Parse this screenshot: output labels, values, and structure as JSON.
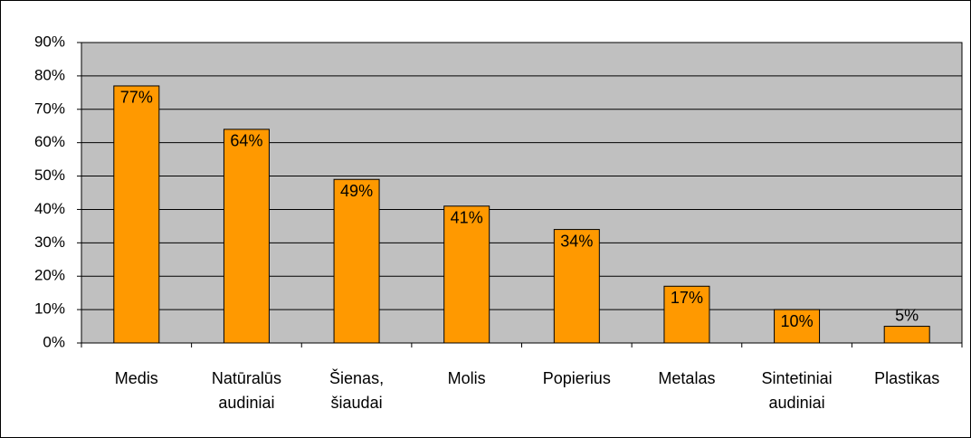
{
  "chart_data": {
    "type": "bar",
    "categories": [
      "Medis",
      "Natūralūs audiniai",
      "Šienas, šiaudai",
      "Molis",
      "Popierius",
      "Metalas",
      "Sintetiniai audiniai",
      "Plastikas"
    ],
    "values": [
      77,
      64,
      49,
      41,
      34,
      17,
      10,
      5
    ],
    "value_labels": [
      "77%",
      "64%",
      "49%",
      "41%",
      "34%",
      "17%",
      "10%",
      "5%"
    ],
    "color": "#ff9900",
    "ylim": [
      0,
      90
    ],
    "yticks": [
      {
        "value": 0,
        "label": "0%"
      },
      {
        "value": 10,
        "label": "10%"
      },
      {
        "value": 20,
        "label": "20%"
      },
      {
        "value": 30,
        "label": "30%"
      },
      {
        "value": 40,
        "label": "40%"
      },
      {
        "value": 50,
        "label": "50%"
      },
      {
        "value": 60,
        "label": "60%"
      },
      {
        "value": 70,
        "label": "70%"
      },
      {
        "value": 80,
        "label": "80%"
      },
      {
        "value": 90,
        "label": "90%"
      }
    ],
    "grid": true
  }
}
